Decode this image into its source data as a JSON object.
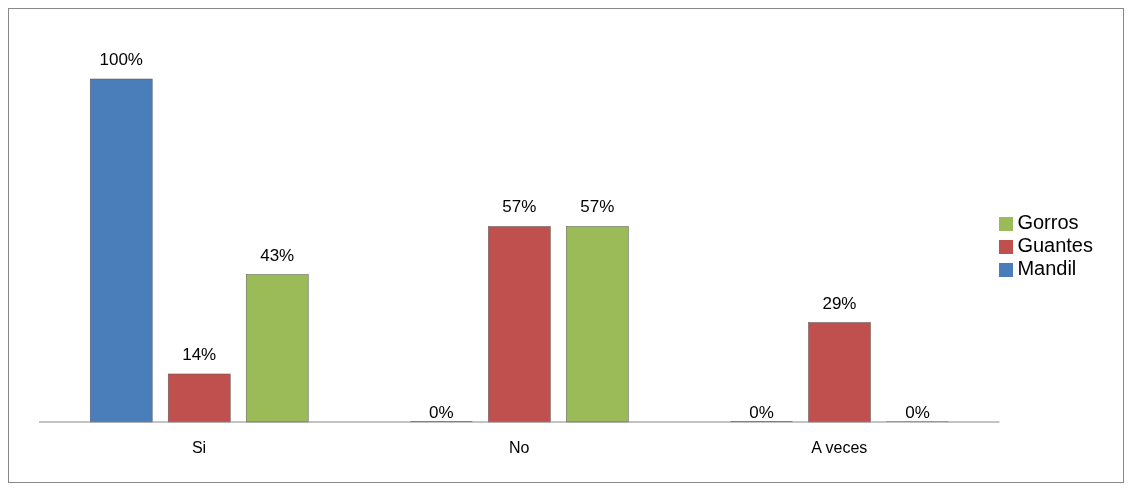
{
  "chart_data": {
    "type": "bar",
    "categories": [
      "Si",
      "No",
      "A veces"
    ],
    "series": [
      {
        "name": "Mandil",
        "color": "#4a7ebb",
        "values": [
          100,
          0,
          0
        ],
        "value_labels": [
          "100%",
          "0%",
          "0%"
        ]
      },
      {
        "name": "Guantes",
        "color": "#c0504d",
        "values": [
          14,
          57,
          29
        ],
        "value_labels": [
          "14%",
          "57%",
          "29%"
        ]
      },
      {
        "name": "Gorros",
        "color": "#9bbb59",
        "values": [
          43,
          57,
          0
        ],
        "value_labels": [
          "43%",
          "57%",
          "0%"
        ]
      }
    ],
    "legend": "right",
    "grid": false
  }
}
